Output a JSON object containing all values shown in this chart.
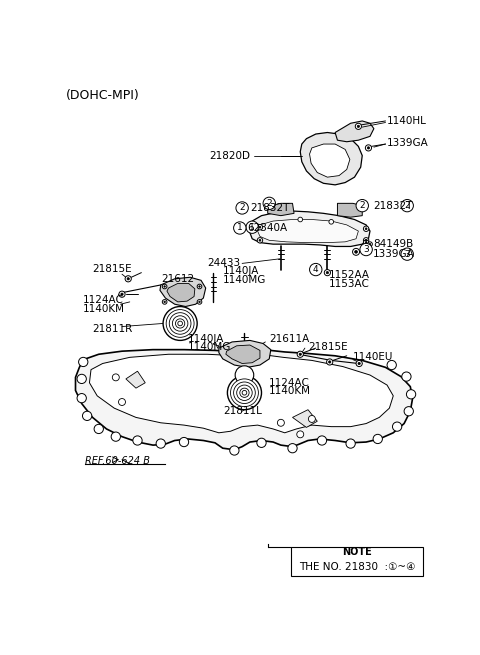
{
  "bg": "#ffffff",
  "title": "(DOHC-MPI)",
  "note_title": "NOTE",
  "note_text": "THE NO. 21830  :①~④",
  "ref_text": "REF.60-624 B"
}
